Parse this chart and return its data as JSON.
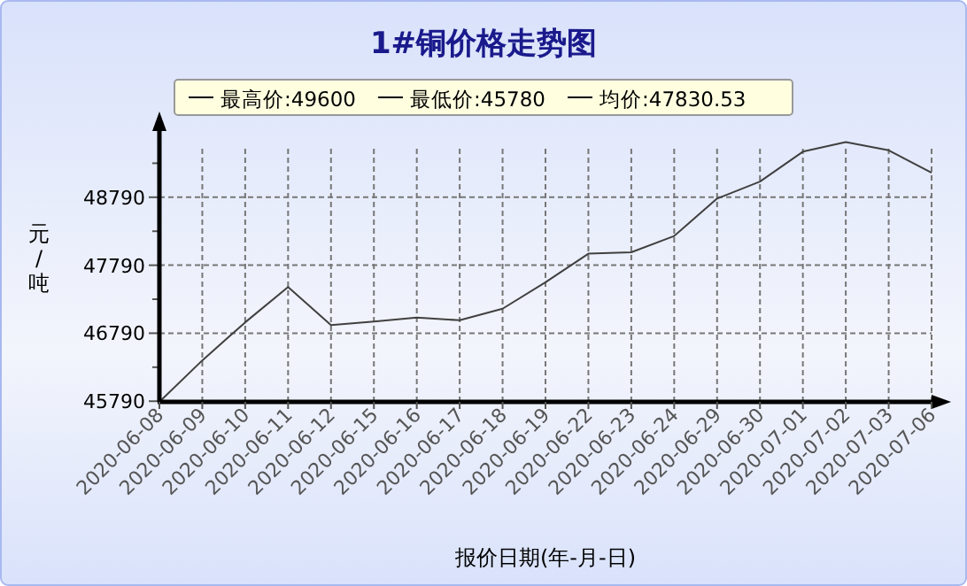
{
  "chart_data": {
    "type": "line",
    "title": "1#铜价格走势图",
    "xlabel": "报价日期(年-月-日)",
    "ylabel": "元/吨",
    "annotations": [
      "最高价:49600",
      "最低价:45780",
      "均价:47830.53"
    ],
    "categories": [
      "2020-06-08",
      "2020-06-09",
      "2020-06-10",
      "2020-06-11",
      "2020-06-12",
      "2020-06-15",
      "2020-06-16",
      "2020-06-17",
      "2020-06-18",
      "2020-06-19",
      "2020-06-22",
      "2020-06-23",
      "2020-06-24",
      "2020-06-29",
      "2020-06-30",
      "2020-07-01",
      "2020-07-02",
      "2020-07-03",
      "2020-07-06"
    ],
    "series": [
      {
        "color": "#404040",
        "values": [
          45780,
          46390,
          46950,
          47470,
          46910,
          46960,
          47020,
          46980,
          47150,
          47540,
          47960,
          47980,
          48220,
          48770,
          49020,
          49460,
          49600,
          49480,
          49150
        ]
      }
    ],
    "ylim": [
      45780,
      49790
    ],
    "yticks": [
      45790,
      {
        "value": 46290,
        "label": null
      },
      46790,
      {
        "value": 47290,
        "label": null
      },
      47790,
      {
        "value": 48290,
        "label": null
      },
      48790,
      {
        "value": 49290,
        "label": null
      }
    ],
    "grid": true,
    "marker": "none",
    "line_style": "solid"
  }
}
